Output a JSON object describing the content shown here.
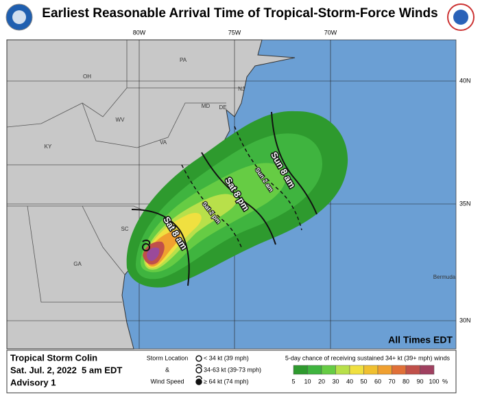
{
  "header": {
    "title": "Earliest Reasonable Arrival Time of Tropical-Storm-Force Winds"
  },
  "map": {
    "lon_labels": [
      "80W",
      "75W",
      "70W"
    ],
    "lat_labels": [
      "40N",
      "35N",
      "30N"
    ],
    "place_labels": [
      "PA",
      "OH",
      "WV",
      "MD",
      "DE",
      "NJ",
      "VA",
      "KY",
      "SC",
      "GA",
      "Bermuda"
    ],
    "time_labels": [
      "Sat 8 am",
      "Sat 2 pm",
      "Sat 8 pm",
      "Sun 2 am",
      "Sun 8 am"
    ],
    "note": "All Times EDT"
  },
  "footer": {
    "storm_name": "Tropical Storm Colin",
    "date": "Sat. Jul. 2, 2022  5 am EDT",
    "advisory": "Advisory 1",
    "key_title": [
      "Storm Location",
      "&",
      "Wind Speed"
    ],
    "key_items": [
      "< 34 kt (39 mph)",
      "34-63 kt (39-73 mph)",
      "≥ 64 kt (74 mph)"
    ],
    "legend_title": "5-day chance of receiving sustained 34+ kt (39+ mph) winds",
    "legend_ticks": [
      "5",
      "10",
      "20",
      "30",
      "40",
      "50",
      "60",
      "70",
      "80",
      "90",
      "100"
    ],
    "legend_unit": "%"
  }
}
